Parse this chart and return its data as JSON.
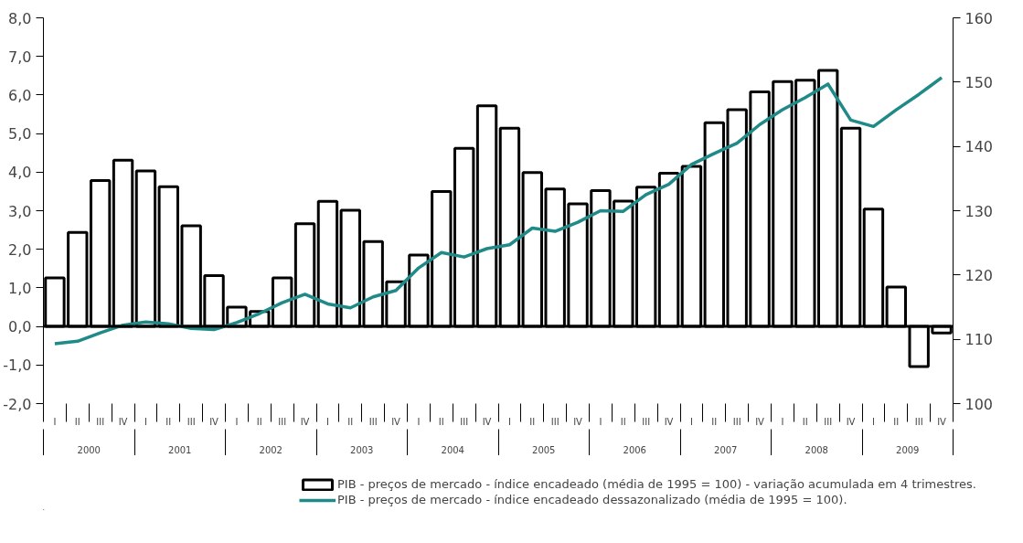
{
  "chart_data": {
    "type": "bar",
    "categories": [
      "I",
      "II",
      "III",
      "IV",
      "I",
      "II",
      "III",
      "IV",
      "I",
      "II",
      "III",
      "IV",
      "I",
      "II",
      "III",
      "IV",
      "I",
      "II",
      "III",
      "IV",
      "I",
      "II",
      "III",
      "IV",
      "I",
      "II",
      "III",
      "IV",
      "I",
      "II",
      "III",
      "IV",
      "I",
      "II",
      "III",
      "IV",
      "I",
      "II",
      "III",
      "IV"
    ],
    "annotations": [
      "2000",
      "2001",
      "2002",
      "2003",
      "2004",
      "2005",
      "2006",
      "2007",
      "2008",
      "2009"
    ],
    "series": [
      {
        "name": "PIB - preços de mercado - índice encadeado (média de 1995 = 100) - variação acumulada em 4 trimestres.",
        "color": "#ffffff",
        "values": [
          1.26,
          2.44,
          3.78,
          4.31,
          4.03,
          3.62,
          2.61,
          1.32,
          0.5,
          0.39,
          1.26,
          2.66,
          3.24,
          3.01,
          2.2,
          1.16,
          1.85,
          3.5,
          4.62,
          5.72,
          5.14,
          3.99,
          3.56,
          3.18,
          3.52,
          3.25,
          3.61,
          3.97,
          4.15,
          5.28,
          5.62,
          6.08,
          6.35,
          6.38,
          6.64,
          5.14,
          3.04,
          1.02,
          -1.04,
          -0.17
        ]
      },
      {
        "name": "PIB - preços de mercado - índice encadeado dessazonalizado (média de 1995 = 100).",
        "type": "line",
        "axis": "y2",
        "color": "#1f8a87",
        "values": [
          109.3,
          109.7,
          111.0,
          112.2,
          112.7,
          112.4,
          111.7,
          111.5,
          112.6,
          114.0,
          115.7,
          117.0,
          115.5,
          114.9,
          116.6,
          117.6,
          121.1,
          123.5,
          122.8,
          124.1,
          124.7,
          127.3,
          126.8,
          128.2,
          130.0,
          129.9,
          132.5,
          134.1,
          137.2,
          138.9,
          140.5,
          143.4,
          145.7,
          147.6,
          149.7,
          144.1,
          143.1,
          145.7,
          148.1,
          150.7
        ]
      }
    ],
    "ylim": [
      -2,
      8
    ],
    "yticks": [
      {
        "value": -2,
        "label": "-2,0"
      },
      {
        "value": -1,
        "label": "-1,0"
      },
      {
        "value": 0,
        "label": "0,0"
      },
      {
        "value": 1,
        "label": "1,0"
      },
      {
        "value": 2,
        "label": "2,0"
      },
      {
        "value": 3,
        "label": "3,0"
      },
      {
        "value": 4,
        "label": "4,0"
      },
      {
        "value": 5,
        "label": "5,0"
      },
      {
        "value": 6,
        "label": "6,0"
      },
      {
        "value": 7,
        "label": "7,0"
      },
      {
        "value": 8,
        "label": "8,0"
      }
    ],
    "y2lim": [
      100,
      160
    ],
    "y2ticks": [
      100,
      110,
      120,
      130,
      140,
      150,
      160
    ],
    "ref_lines": [
      {
        "axis": "y",
        "value": 0,
        "color": "#000000"
      }
    ],
    "grid": false,
    "legend": "bottom right",
    "marker": "none"
  }
}
